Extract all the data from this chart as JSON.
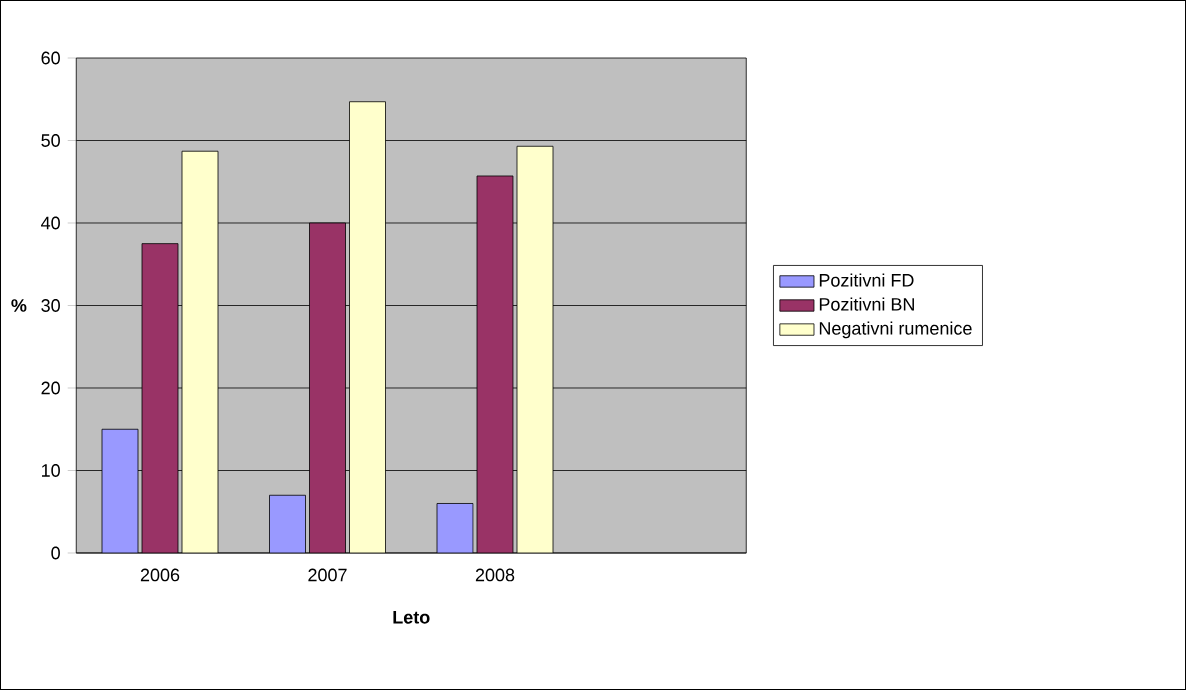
{
  "chart_data": {
    "type": "bar",
    "xlabel": "Leto",
    "ylabel": "%",
    "categories": [
      "2006",
      "2007",
      "2008",
      null
    ],
    "series": [
      {
        "name": "Pozitivni FD",
        "color": "#9999ff",
        "values": [
          15,
          7,
          6,
          null
        ]
      },
      {
        "name": "Pozitivni BN",
        "color": "#993366",
        "values": [
          37.5,
          40,
          45.7,
          null
        ]
      },
      {
        "name": "Negativni rumenice",
        "color": "#ffffcc",
        "values": [
          48.7,
          54.7,
          49.3,
          null
        ]
      }
    ],
    "ylim": [
      0,
      60
    ],
    "yticks": [
      0,
      10,
      20,
      30,
      40,
      50,
      60
    ],
    "grid": "y",
    "legend": "right"
  }
}
